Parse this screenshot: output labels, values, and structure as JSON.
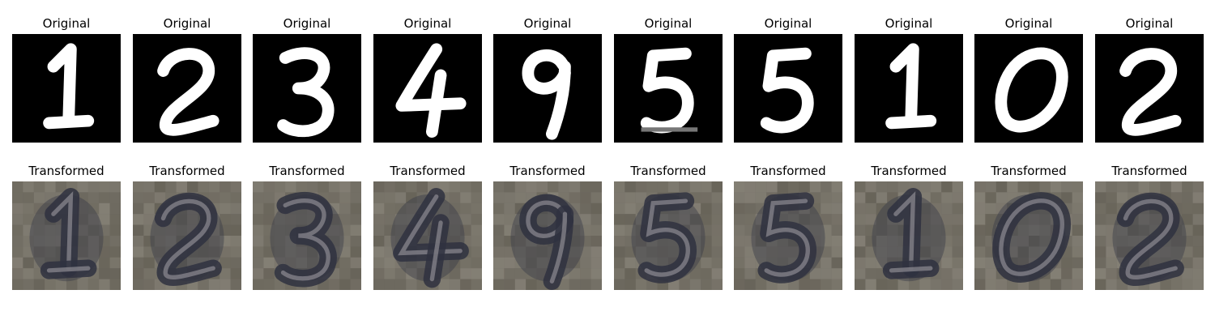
{
  "rows": [
    {
      "name": "original",
      "background": "#000000",
      "ink": "#ffffff",
      "panels": [
        {
          "title": "Original",
          "digit": "1"
        },
        {
          "title": "Original",
          "digit": "2"
        },
        {
          "title": "Original",
          "digit": "3"
        },
        {
          "title": "Original",
          "digit": "4"
        },
        {
          "title": "Original",
          "digit": "9"
        },
        {
          "title": "Original",
          "digit": "5"
        },
        {
          "title": "Original",
          "digit": "5"
        },
        {
          "title": "Original",
          "digit": "1"
        },
        {
          "title": "Original",
          "digit": "0"
        },
        {
          "title": "Original",
          "digit": "2"
        }
      ]
    },
    {
      "name": "transformed",
      "background": "#6f6a60",
      "ink": "#2f3140",
      "panels": [
        {
          "title": "Transformed",
          "digit": "1"
        },
        {
          "title": "Transformed",
          "digit": "2"
        },
        {
          "title": "Transformed",
          "digit": "3"
        },
        {
          "title": "Transformed",
          "digit": "4"
        },
        {
          "title": "Transformed",
          "digit": "9"
        },
        {
          "title": "Transformed",
          "digit": "5"
        },
        {
          "title": "Transformed",
          "digit": "5"
        },
        {
          "title": "Transformed",
          "digit": "1"
        },
        {
          "title": "Transformed",
          "digit": "0"
        },
        {
          "title": "Transformed",
          "digit": "2"
        }
      ]
    }
  ]
}
